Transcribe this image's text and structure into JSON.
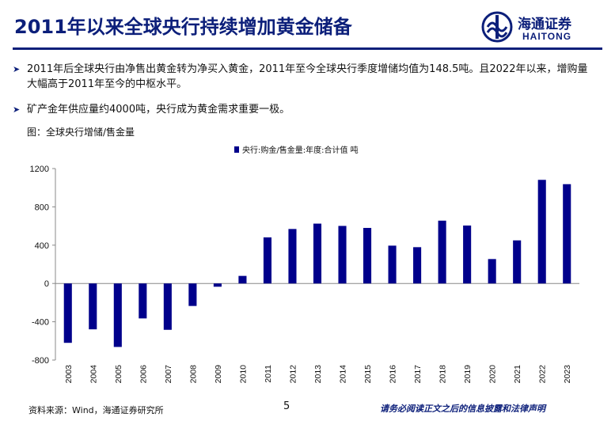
{
  "header": {
    "title": "2011年以来全球央行持续增加黄金储备",
    "logo_cn": "海通证券",
    "logo_en": "HAITONG",
    "brand_color": "#0c1f7a"
  },
  "bullets": [
    "2011年后全球央行由净售出黄金转为净买入黄金，2011年至今全球央行季度增储均值为148.5吨。且2022年以来，增购量大幅高于2011年至今的中枢水平。",
    "矿产金年供应量约4000吨，央行成为黄金需求重要一极。"
  ],
  "figure_label": "图：全球央行增储/售金量",
  "chart_data": {
    "type": "bar",
    "title": "",
    "legend": [
      "央行:购金/售金量:年度:合计值 吨"
    ],
    "legend_position": "top-center",
    "categories": [
      "2003",
      "2004",
      "2005",
      "2006",
      "2007",
      "2008",
      "2009",
      "2010",
      "2011",
      "2012",
      "2013",
      "2014",
      "2015",
      "2016",
      "2017",
      "2018",
      "2019",
      "2020",
      "2021",
      "2022",
      "2023"
    ],
    "series": [
      {
        "name": "央行:购金/售金量:年度:合计值 吨",
        "values": [
          -620,
          -479,
          -663,
          -365,
          -484,
          -235,
          -34,
          79,
          481,
          569,
          625,
          601,
          580,
          395,
          379,
          656,
          605,
          255,
          450,
          1082,
          1037
        ],
        "color": "#00008b"
      }
    ],
    "ylim": [
      -800,
      1200
    ],
    "yticks": [
      -800,
      -400,
      0,
      400,
      800,
      1200
    ],
    "ytick_labels": [
      "-800",
      "-400",
      "0",
      "400",
      "800",
      "1200"
    ],
    "xlabel": "",
    "ylabel": ""
  },
  "footer": {
    "source": "资料来源：Wind，海通证券研究所",
    "page_number": "5",
    "disclaimer": "请务必阅读正文之后的信息披露和法律声明"
  }
}
